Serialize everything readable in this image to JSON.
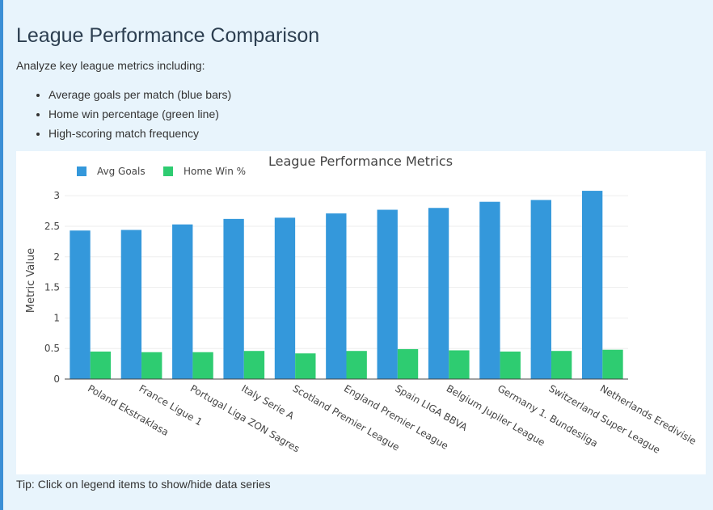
{
  "page": {
    "title": "League Performance Comparison",
    "intro": "Analyze key league metrics including:",
    "bullets": [
      "Average goals per match (blue bars)",
      "Home win percentage (green line)",
      "High-scoring match frequency"
    ],
    "tip": "Tip: Click on legend items to show/hide data series"
  },
  "chart_data": {
    "type": "bar",
    "title": "League Performance Metrics",
    "xlabel": "",
    "ylabel": "Metric Value",
    "ylim": [
      0,
      3.2
    ],
    "yticks": [
      0,
      0.5,
      1,
      1.5,
      2,
      2.5,
      3
    ],
    "grid": true,
    "legend_position": "top-left",
    "categories": [
      "Poland Ekstraklasa",
      "France Ligue 1",
      "Portugal Liga ZON Sagres",
      "Italy Serie A",
      "Scotland Premier League",
      "England Premier League",
      "Spain LIGA BBVA",
      "Belgium Jupiler League",
      "Germany 1. Bundesliga",
      "Switzerland Super League",
      "Netherlands Eredivisie"
    ],
    "series": [
      {
        "name": "Avg Goals",
        "color": "#3498db",
        "values": [
          2.43,
          2.44,
          2.53,
          2.62,
          2.64,
          2.71,
          2.77,
          2.8,
          2.9,
          2.93,
          3.08
        ]
      },
      {
        "name": "Home Win %",
        "color": "#2ecc71",
        "values": [
          0.45,
          0.44,
          0.44,
          0.46,
          0.42,
          0.46,
          0.49,
          0.47,
          0.45,
          0.46,
          0.48
        ]
      }
    ]
  }
}
